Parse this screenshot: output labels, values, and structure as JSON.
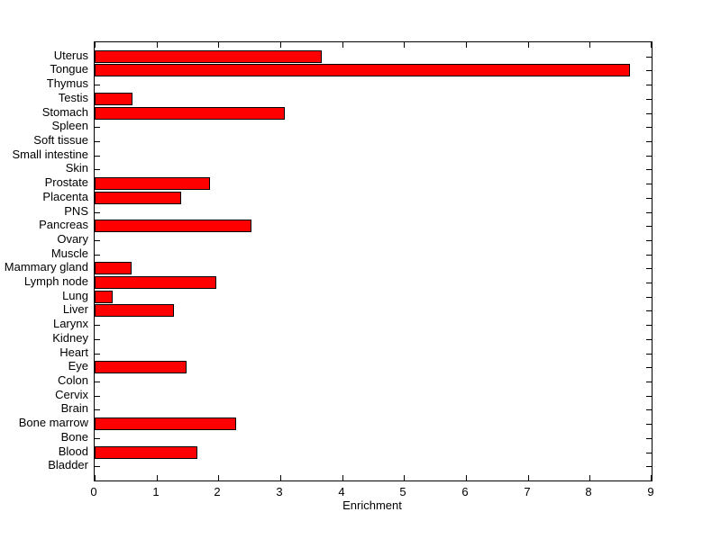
{
  "chart_data": {
    "type": "bar",
    "orientation": "horizontal",
    "title": "",
    "xlabel": "Enrichment",
    "ylabel": "",
    "xlim": [
      0,
      9
    ],
    "xticks": [
      "0",
      "1",
      "2",
      "3",
      "4",
      "5",
      "6",
      "7",
      "8",
      "9"
    ],
    "grid": false,
    "legend": null,
    "bar_color": "#FF0000",
    "bar_edge_color": "#000000",
    "background_color": "#FFFFFF",
    "categories": [
      "Uterus",
      "Tongue",
      "Thymus",
      "Testis",
      "Stomach",
      "Spleen",
      "Soft tissue",
      "Small intestine",
      "Skin",
      "Prostate",
      "Placenta",
      "PNS",
      "Pancreas",
      "Ovary",
      "Muscle",
      "Mammary gland",
      "Lymph node",
      "Lung",
      "Liver",
      "Larynx",
      "Kidney",
      "Heart",
      "Eye",
      "Colon",
      "Cervix",
      "Brain",
      "Bone marrow",
      "Bone",
      "Blood",
      "Bladder"
    ],
    "values": [
      3.67,
      8.65,
      0,
      0.61,
      3.07,
      0,
      0,
      0,
      0,
      1.87,
      1.4,
      0,
      2.53,
      0,
      0,
      0.6,
      1.96,
      0.29,
      1.28,
      0,
      0,
      0,
      1.48,
      0,
      0,
      0,
      2.28,
      0,
      1.66,
      0
    ]
  }
}
